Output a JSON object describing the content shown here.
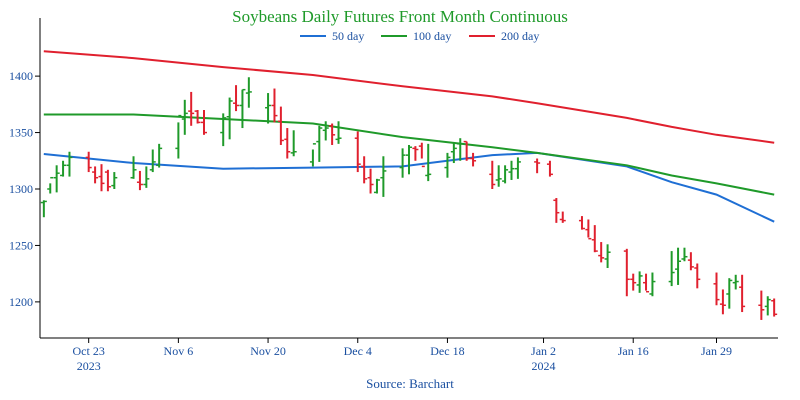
{
  "chart_data": {
    "type": "line",
    "title": "Soybeans Daily Futures Front Month Continuous",
    "source": "Source: Barchart",
    "legend_position": "top-center",
    "grid": false,
    "ylim": [
      1168,
      1432
    ],
    "y_ticks": [
      1200,
      1250,
      1300,
      1350,
      1400
    ],
    "x_ticks": [
      {
        "label": "Oct 23",
        "sub": "2023",
        "day": 7
      },
      {
        "label": "Nov 6",
        "sub": "",
        "day": 21
      },
      {
        "label": "Nov 20",
        "sub": "",
        "day": 35
      },
      {
        "label": "Dec 4",
        "sub": "",
        "day": 49
      },
      {
        "label": "Dec 18",
        "sub": "",
        "day": 63
      },
      {
        "label": "Jan 2",
        "sub": "2024",
        "day": 78
      },
      {
        "label": "Jan 16",
        "sub": "",
        "day": 92
      },
      {
        "label": "Jan 29",
        "sub": "",
        "day": 105
      }
    ],
    "x_range_days": [
      -0.6,
      114.6
    ],
    "colors": {
      "up": "#1f9a2a",
      "down": "#e0202e"
    },
    "ohlc": {
      "day": [
        0,
        1,
        2,
        3,
        4,
        7,
        8,
        9,
        10,
        11,
        14,
        15,
        16,
        17,
        18,
        21,
        22,
        23,
        24,
        25,
        28,
        29,
        30,
        31,
        32,
        35,
        36,
        37,
        38,
        39,
        42,
        43,
        44,
        45,
        46,
        49,
        50,
        51,
        52,
        53,
        56,
        57,
        58,
        59,
        60,
        63,
        64,
        65,
        66,
        67,
        70,
        71,
        72,
        73,
        74,
        77,
        79,
        80,
        81,
        84,
        85,
        86,
        87,
        88,
        91,
        92,
        93,
        94,
        95,
        98,
        99,
        100,
        101,
        102,
        105,
        106,
        107,
        108,
        109,
        112,
        113,
        114
      ],
      "open": [
        1288,
        1300,
        1310,
        1312,
        1321,
        1328,
        1315,
        1311,
        1315,
        1303,
        1310,
        1306,
        1304,
        1317,
        1321,
        1336,
        1362,
        1369,
        1369,
        1359,
        1350,
        1364,
        1376,
        1374,
        1385,
        1372,
        1374,
        1360,
        1344,
        1332,
        1324,
        1342,
        1352,
        1356,
        1344,
        1345,
        1320,
        1310,
        1297,
        1310,
        1319,
        1330,
        1336,
        1338,
        1312,
        1319,
        1333,
        1340,
        1342,
        1327,
        1313,
        1308,
        1307,
        1315,
        1318,
        1324,
        1322,
        1290,
        1273,
        1272,
        1264,
        1255,
        1241,
        1238,
        1245,
        1220,
        1215,
        1217,
        1207,
        1218,
        1229,
        1238,
        1237,
        1230,
        1216,
        1198,
        1207,
        1217,
        1213,
        1197,
        1196,
        1201
      ],
      "high": [
        1290,
        1305,
        1321,
        1325,
        1333,
        1333,
        1320,
        1322,
        1317,
        1315,
        1329,
        1316,
        1320,
        1335,
        1340,
        1359,
        1379,
        1386,
        1370,
        1370,
        1367,
        1381,
        1392,
        1388,
        1399,
        1385,
        1389,
        1373,
        1354,
        1352,
        1335,
        1356,
        1360,
        1358,
        1360,
        1351,
        1329,
        1318,
        1309,
        1329,
        1336,
        1339,
        1338,
        1341,
        1340,
        1332,
        1341,
        1345,
        1342,
        1332,
        1325,
        1321,
        1321,
        1325,
        1328,
        1327,
        1325,
        1292,
        1280,
        1276,
        1273,
        1268,
        1253,
        1251,
        1247,
        1225,
        1227,
        1225,
        1226,
        1245,
        1248,
        1248,
        1244,
        1234,
        1226,
        1211,
        1221,
        1224,
        1224,
        1210,
        1205,
        1203
      ],
      "low": [
        1275,
        1296,
        1297,
        1311,
        1311,
        1315,
        1305,
        1298,
        1298,
        1300,
        1309,
        1299,
        1301,
        1315,
        1319,
        1327,
        1348,
        1356,
        1358,
        1348,
        1338,
        1344,
        1369,
        1354,
        1372,
        1358,
        1359,
        1339,
        1327,
        1329,
        1320,
        1324,
        1343,
        1339,
        1340,
        1315,
        1305,
        1296,
        1296,
        1293,
        1310,
        1313,
        1325,
        1327,
        1307,
        1310,
        1323,
        1325,
        1325,
        1320,
        1300,
        1302,
        1305,
        1308,
        1309,
        1314,
        1311,
        1270,
        1270,
        1264,
        1257,
        1244,
        1235,
        1230,
        1205,
        1210,
        1208,
        1210,
        1205,
        1214,
        1215,
        1236,
        1228,
        1212,
        1197,
        1189,
        1194,
        1211,
        1191,
        1184,
        1188,
        1187
      ],
      "close": [
        1289,
        1310,
        1314,
        1321,
        1328,
        1319,
        1310,
        1305,
        1302,
        1310,
        1317,
        1304,
        1309,
        1324,
        1336,
        1365,
        1367,
        1367,
        1359,
        1350,
        1363,
        1378,
        1374,
        1388,
        1386,
        1374,
        1365,
        1343,
        1333,
        1333,
        1340,
        1354,
        1354,
        1348,
        1345,
        1322,
        1309,
        1304,
        1308,
        1316,
        1330,
        1337,
        1335,
        1320,
        1313,
        1328,
        1336,
        1340,
        1327,
        1325,
        1304,
        1309,
        1317,
        1318,
        1324,
        1323,
        1313,
        1279,
        1272,
        1265,
        1256,
        1245,
        1239,
        1244,
        1220,
        1217,
        1223,
        1209,
        1218,
        1226,
        1236,
        1240,
        1231,
        1220,
        1202,
        1197,
        1219,
        1218,
        1196,
        1193,
        1202,
        1189
      ]
    },
    "series": [
      {
        "name": "50 day",
        "color": "#1f6fd4",
        "x": [
          0,
          14,
          28,
          42,
          56,
          70,
          77,
          91,
          98,
          105,
          114
        ],
        "values": [
          1331,
          1323,
          1318,
          1319,
          1320,
          1330,
          1332,
          1320,
          1306,
          1295,
          1271
        ]
      },
      {
        "name": "100 day",
        "color": "#1f9a2a",
        "x": [
          0,
          14,
          28,
          42,
          56,
          70,
          77,
          91,
          98,
          105,
          114
        ],
        "values": [
          1366,
          1366,
          1362,
          1358,
          1346,
          1337,
          1332,
          1321,
          1312,
          1305,
          1295
        ]
      },
      {
        "name": "200 day",
        "color": "#e0202e",
        "x": [
          0,
          14,
          28,
          42,
          56,
          70,
          77,
          91,
          98,
          105,
          114
        ],
        "values": [
          1422,
          1416,
          1408,
          1401,
          1391,
          1382,
          1376,
          1363,
          1355,
          1348,
          1341
        ]
      }
    ]
  }
}
